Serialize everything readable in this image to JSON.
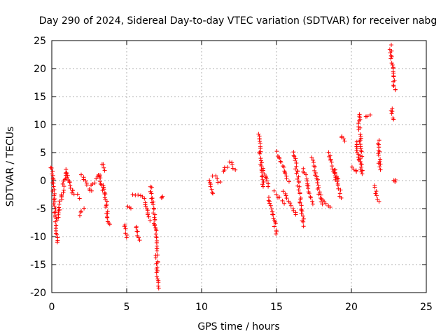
{
  "chart_data": {
    "type": "scatter",
    "title": "Day 290 of 2024, Sidereal Day-to-day VTEC variation (SDTVAR) for receiver nabg",
    "xlabel": "GPS time / hours",
    "ylabel": "SDTVAR / TECUs",
    "xlim": [
      0,
      25
    ],
    "ylim": [
      -20,
      25
    ],
    "x_ticks": [
      0,
      5,
      10,
      15,
      20,
      25
    ],
    "y_ticks": [
      -20,
      -15,
      -10,
      -5,
      0,
      5,
      10,
      15,
      20,
      25
    ],
    "x_tick_labels": [
      "0",
      "5",
      "10",
      "15",
      "20",
      "25"
    ],
    "y_tick_labels": [
      "-20",
      "-15",
      "-10",
      "-5",
      "0",
      "5",
      "10",
      "15",
      "20",
      "25"
    ],
    "grid": true,
    "marker": "+",
    "marker_color": "#ff0000",
    "segments": [
      {
        "x": [
          0,
          0.35
        ],
        "y": [
          2.5,
          -11
        ]
      },
      {
        "x": [
          0.35,
          1.0
        ],
        "y": [
          -7,
          2
        ]
      },
      {
        "x": [
          1.0,
          1.4
        ],
        "y": [
          1.5,
          -2
        ]
      },
      {
        "x": [
          1.4,
          1.8
        ],
        "y": [
          -2,
          -3
        ]
      },
      {
        "x": [
          1.8,
          2.1
        ],
        "y": [
          -6,
          -5
        ]
      },
      {
        "x": [
          2.0,
          2.6
        ],
        "y": [
          1,
          -2
        ]
      },
      {
        "x": [
          2.6,
          3.2
        ],
        "y": [
          -1,
          1
        ]
      },
      {
        "x": [
          3.1,
          3.5
        ],
        "y": [
          1,
          -2
        ]
      },
      {
        "x": [
          3.3,
          3.5
        ],
        "y": [
          3,
          2
        ]
      },
      {
        "x": [
          3.5,
          3.8
        ],
        "y": [
          -1,
          -8
        ]
      },
      {
        "x": [
          4.9,
          5.0
        ],
        "y": [
          -8,
          -10
        ]
      },
      {
        "x": [
          5.0,
          5.3
        ],
        "y": [
          -4.5,
          -5
        ]
      },
      {
        "x": [
          5.4,
          5.9
        ],
        "y": [
          -2.5,
          -2.5
        ]
      },
      {
        "x": [
          5.6,
          5.8
        ],
        "y": [
          -8,
          -10.5
        ]
      },
      {
        "x": [
          6.1,
          6.5
        ],
        "y": [
          -3,
          -7
        ]
      },
      {
        "x": [
          6.6,
          6.9
        ],
        "y": [
          -1,
          -8
        ]
      },
      {
        "x": [
          6.9,
          7.1
        ],
        "y": [
          -8,
          -19
        ]
      },
      {
        "x": [
          7.3,
          7.4
        ],
        "y": [
          -3,
          -3
        ]
      },
      {
        "x": [
          10.5,
          10.8
        ],
        "y": [
          0,
          -2.5
        ]
      },
      {
        "x": [
          10.8,
          11.2
        ],
        "y": [
          1,
          -0.5
        ]
      },
      {
        "x": [
          11.4,
          11.7
        ],
        "y": [
          1.5,
          2.5
        ]
      },
      {
        "x": [
          11.9,
          12.2
        ],
        "y": [
          3.5,
          2
        ]
      },
      {
        "x": [
          13.8,
          14.1
        ],
        "y": [
          8.5,
          -1
        ]
      },
      {
        "x": [
          14.1,
          14.5
        ],
        "y": [
          2,
          -1
        ]
      },
      {
        "x": [
          14.5,
          15.0
        ],
        "y": [
          -3,
          -9.5
        ]
      },
      {
        "x": [
          14.8,
          15.5
        ],
        "y": [
          -2,
          -4
        ]
      },
      {
        "x": [
          15.0,
          15.8
        ],
        "y": [
          5,
          0
        ]
      },
      {
        "x": [
          15.5,
          16.3
        ],
        "y": [
          -2,
          -6
        ]
      },
      {
        "x": [
          16.2,
          16.8
        ],
        "y": [
          5,
          -8
        ]
      },
      {
        "x": [
          16.8,
          17.4
        ],
        "y": [
          2,
          -4
        ]
      },
      {
        "x": [
          17.4,
          18.0
        ],
        "y": [
          4,
          -4
        ]
      },
      {
        "x": [
          18.0,
          18.6
        ],
        "y": [
          -3,
          -5
        ]
      },
      {
        "x": [
          18.5,
          19.0
        ],
        "y": [
          5,
          0
        ]
      },
      {
        "x": [
          18.9,
          19.3
        ],
        "y": [
          2,
          -3
        ]
      },
      {
        "x": [
          19.3,
          19.6
        ],
        "y": [
          8,
          7
        ]
      },
      {
        "x": [
          20.0,
          20.4
        ],
        "y": [
          2.5,
          1.5
        ]
      },
      {
        "x": [
          20.3,
          20.6
        ],
        "y": [
          7,
          3
        ]
      },
      {
        "x": [
          20.5,
          20.7
        ],
        "y": [
          12,
          1
        ]
      },
      {
        "x": [
          21.0,
          21.2
        ],
        "y": [
          11.5,
          11.5
        ]
      },
      {
        "x": [
          21.5,
          21.8
        ],
        "y": [
          -1,
          -3.5
        ]
      },
      {
        "x": [
          21.8,
          21.9
        ],
        "y": [
          7,
          2
        ]
      },
      {
        "x": [
          22.6,
          22.9
        ],
        "y": [
          24,
          16
        ]
      },
      {
        "x": [
          22.7,
          22.8
        ],
        "y": [
          13,
          11
        ]
      },
      {
        "x": [
          22.9,
          23.0
        ],
        "y": [
          0,
          0
        ]
      }
    ]
  }
}
